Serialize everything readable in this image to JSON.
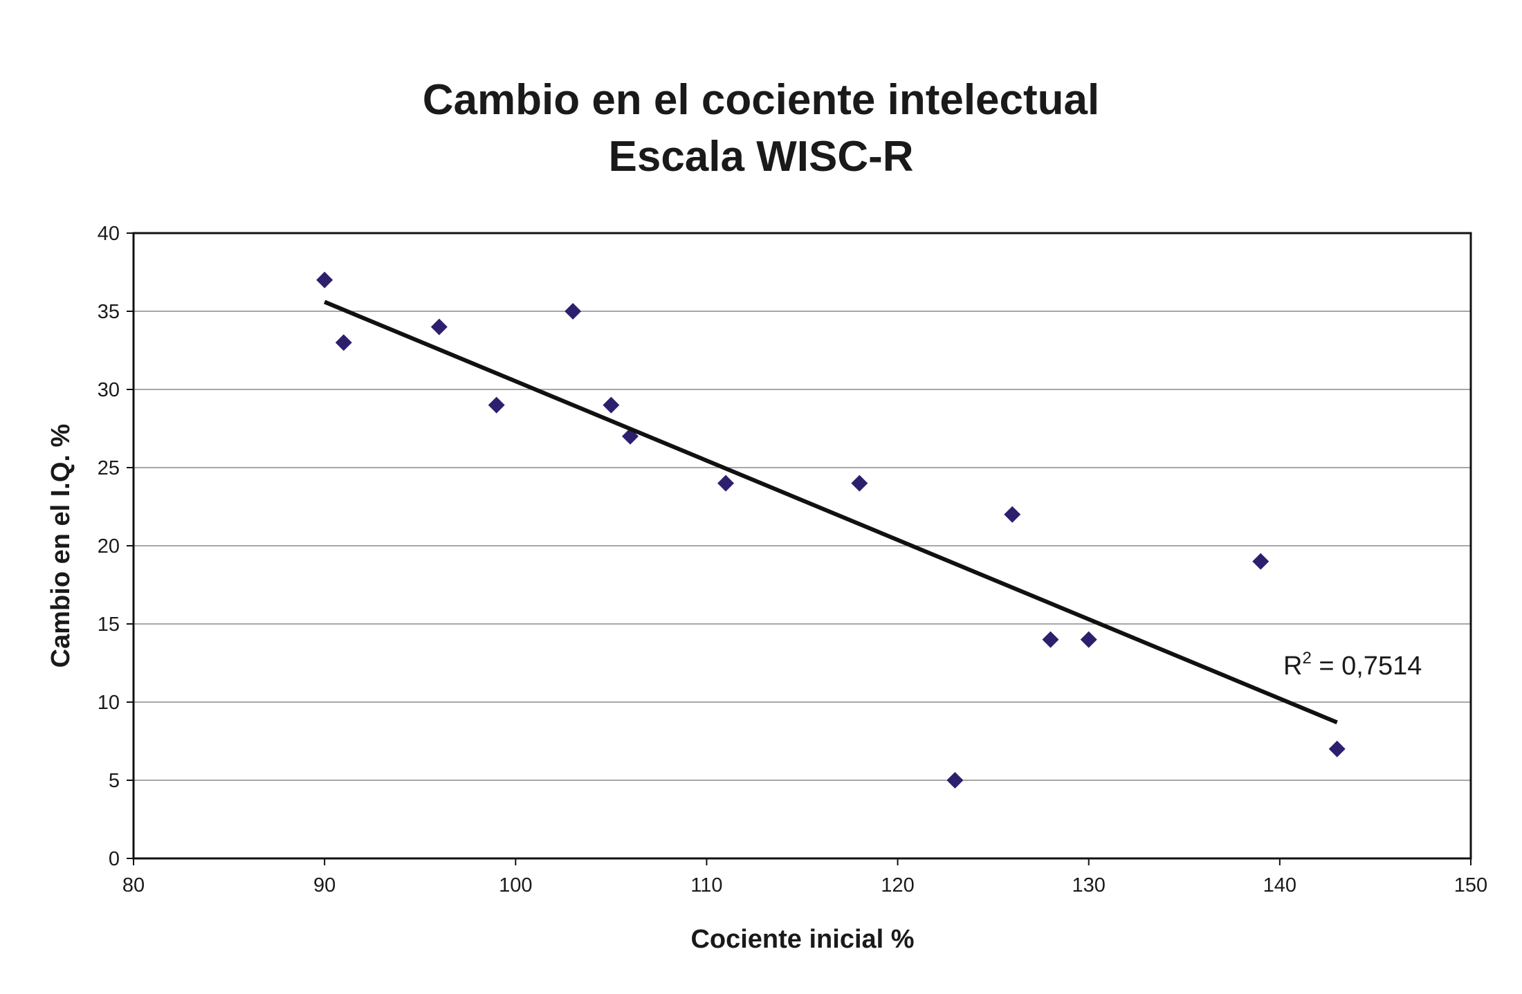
{
  "chart_data": {
    "type": "scatter",
    "title": [
      "Cambio en el cociente intelectual",
      "Escala WISC-R"
    ],
    "xlabel": "Cociente inicial %",
    "ylabel": "Cambio en el I.Q. %",
    "xlim": [
      80,
      150
    ],
    "ylim": [
      0,
      40
    ],
    "x_ticks": [
      "80",
      "90",
      "100",
      "110",
      "120",
      "130",
      "140",
      "150"
    ],
    "y_ticks": [
      "0",
      "5",
      "10",
      "15",
      "20",
      "25",
      "30",
      "35",
      "40"
    ],
    "grid": "horizontal",
    "series": [
      {
        "color": "#2e1f6e",
        "marker": "diamond",
        "points": [
          {
            "x": 90,
            "y": 37
          },
          {
            "x": 91,
            "y": 33
          },
          {
            "x": 96,
            "y": 34
          },
          {
            "x": 99,
            "y": 29
          },
          {
            "x": 103,
            "y": 35
          },
          {
            "x": 105,
            "y": 29
          },
          {
            "x": 106,
            "y": 27
          },
          {
            "x": 111,
            "y": 24
          },
          {
            "x": 118,
            "y": 24
          },
          {
            "x": 123,
            "y": 5
          },
          {
            "x": 126,
            "y": 22
          },
          {
            "x": 128,
            "y": 14
          },
          {
            "x": 130,
            "y": 14
          },
          {
            "x": 139,
            "y": 19
          },
          {
            "x": 143,
            "y": 7
          }
        ]
      }
    ],
    "trendline": {
      "type": "linear",
      "from": {
        "x": 90,
        "y": 35.6
      },
      "to": {
        "x": 143,
        "y": 8.7
      },
      "color": "#111111"
    },
    "annotation": {
      "r_label": "R",
      "r_exp": "2",
      "r_value": " = 0,7514"
    }
  }
}
